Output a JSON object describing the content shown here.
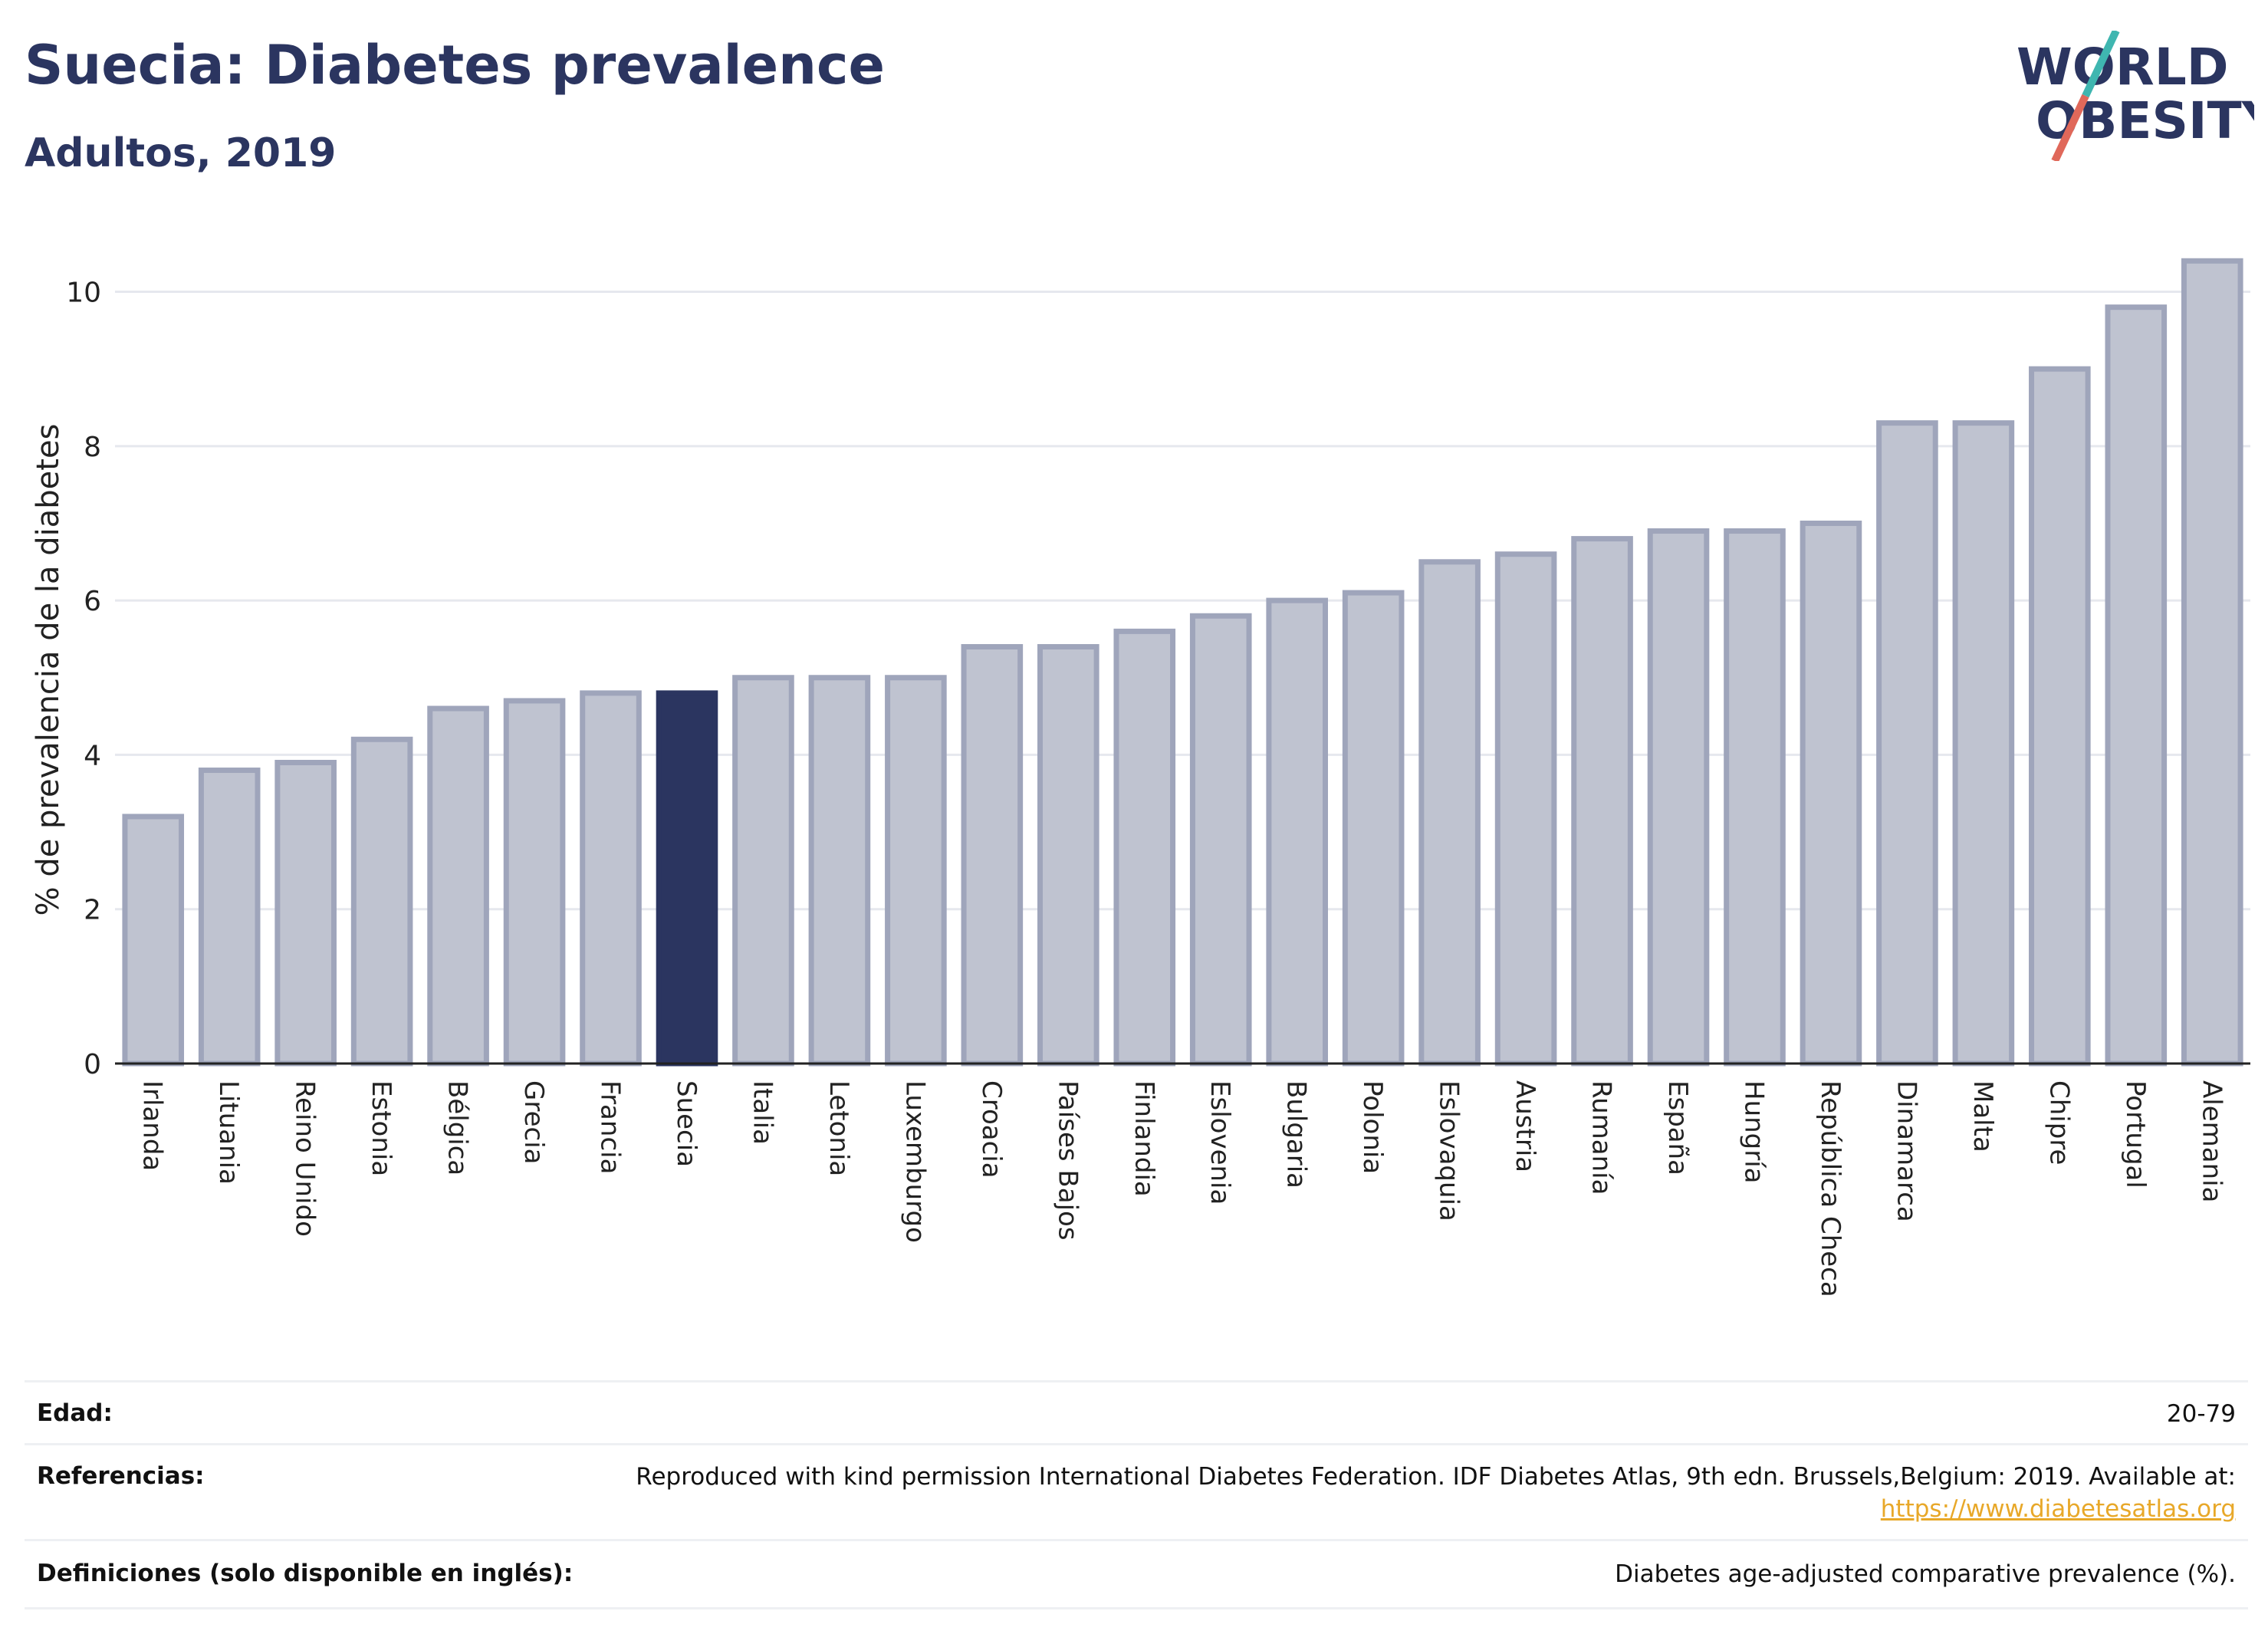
{
  "header": {
    "title": "Suecia: Diabetes prevalence",
    "subtitle": "Adultos, 2019"
  },
  "logo": {
    "line1": "WORLD",
    "line2": "OBESITY",
    "colors": {
      "text": "#2b3560",
      "slash_top": "#3fb6b0",
      "slash_bottom": "#e0685a"
    }
  },
  "chart_data": {
    "type": "bar",
    "title": "Suecia: Diabetes prevalence",
    "subtitle": "Adultos, 2019",
    "xlabel": "",
    "ylabel": "% de prevalencia de la diabetes",
    "ylim": [
      0,
      10.8
    ],
    "yticks": [
      0,
      2,
      4,
      6,
      8,
      10
    ],
    "grid": true,
    "highlight": "Suecia",
    "colors": {
      "bar": "#bfc3d0",
      "bar_edge": "#9fa5bb",
      "highlight": "#2b3560"
    },
    "categories": [
      "Irlanda",
      "Lituania",
      "Reino Unido",
      "Estonia",
      "Bélgica",
      "Grecia",
      "Francia",
      "Suecia",
      "Italia",
      "Letonia",
      "Luxemburgo",
      "Croacia",
      "Países Bajos",
      "Finlandia",
      "Eslovenia",
      "Bulgaria",
      "Polonia",
      "Eslovaquia",
      "Austria",
      "Rumanía",
      "España",
      "Hungría",
      "República Checa",
      "Dinamarca",
      "Malta",
      "Chipre",
      "Portugal",
      "Alemania"
    ],
    "values": [
      3.2,
      3.8,
      3.9,
      4.2,
      4.6,
      4.7,
      4.8,
      4.8,
      5.0,
      5.0,
      5.0,
      5.4,
      5.4,
      5.6,
      5.8,
      6.0,
      6.1,
      6.5,
      6.6,
      6.8,
      6.9,
      6.9,
      7.0,
      8.3,
      8.3,
      9.0,
      9.8,
      10.4
    ]
  },
  "footer": {
    "rows": [
      {
        "label": "Edad:",
        "value": "20-79"
      },
      {
        "label": "Referencias:",
        "value": "Reproduced with kind permission International Diabetes Federation. IDF Diabetes Atlas, 9th edn. Brussels,Belgium: 2019. Available at:",
        "link": "https://www.diabetesatlas.org"
      },
      {
        "label": "Definiciones (solo disponible en inglés):",
        "value": "Diabetes age-adjusted comparative prevalence (%)."
      }
    ]
  }
}
